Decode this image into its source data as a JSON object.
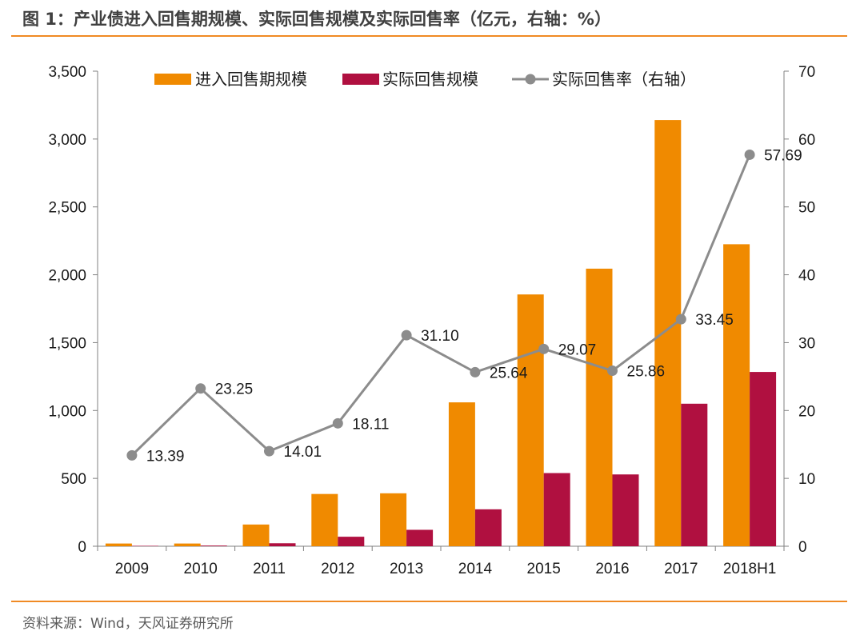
{
  "header": {
    "title": "图 1：产业债进入回售期规模、实际回售规模及实际回售率（亿元，右轴：%）"
  },
  "footer": {
    "source": "资料来源：Wind，天风证券研究所"
  },
  "colors": {
    "orange": "#f08a00",
    "crimson": "#b01040",
    "line": "#8c8c8c",
    "rule": "#f08a24",
    "axis": "#808080"
  },
  "chart_data": {
    "type": "bar",
    "categories": [
      "2009",
      "2010",
      "2011",
      "2012",
      "2013",
      "2014",
      "2015",
      "2016",
      "2017",
      "2018H1"
    ],
    "series": [
      {
        "name": "进入回售期规模",
        "type": "bar",
        "axis": "left",
        "values": [
          20,
          20,
          160,
          385,
          390,
          1060,
          1855,
          2045,
          3140,
          2225
        ]
      },
      {
        "name": "实际回售规模",
        "type": "bar",
        "axis": "left",
        "values": [
          3,
          5,
          22,
          70,
          121,
          272,
          539,
          529,
          1050,
          1284
        ]
      },
      {
        "name": "实际回售率（右轴）",
        "type": "line",
        "axis": "right",
        "values": [
          13.39,
          23.25,
          14.01,
          18.11,
          31.1,
          25.64,
          29.07,
          25.86,
          33.45,
          57.69
        ],
        "labels": [
          "13.39",
          "23.25",
          "14.01",
          "18.11",
          "31.10",
          "25.64",
          "29.07",
          "25.86",
          "33.45",
          "57.69"
        ]
      }
    ],
    "y_left": {
      "min": 0,
      "max": 3500,
      "ticks": [
        "0",
        "500",
        "1,000",
        "1,500",
        "2,000",
        "2,500",
        "3,000",
        "3,500"
      ]
    },
    "y_right": {
      "min": 0,
      "max": 70,
      "ticks": [
        "0",
        "10",
        "20",
        "30",
        "40",
        "50",
        "60",
        "70"
      ]
    },
    "legend": "top-center",
    "grid": false
  }
}
